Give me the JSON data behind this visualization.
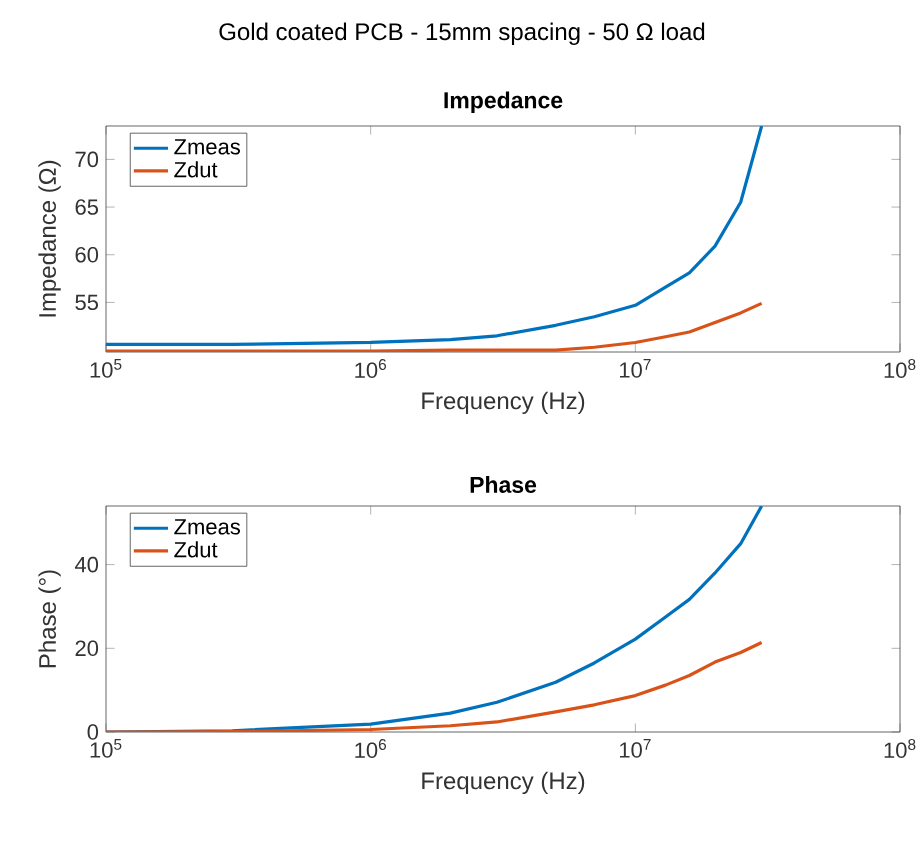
{
  "chart_data": [
    {
      "type": "line",
      "title": "Gold coated PCB - 15mm spacing - 50 Ω load",
      "subtitle": "Impedance",
      "xlabel": "Frequency (Hz)",
      "ylabel": "Impedance (Ω)",
      "log": "x",
      "grid": false,
      "legend": "top left",
      "xlim": [
        100000,
        100000000
      ],
      "xticks": [
        {
          "value": 100000,
          "label": "10$^{5}$"
        },
        {
          "value": 1000000,
          "label": "10$^{6}$"
        },
        {
          "value": 10000000,
          "label": "10$^{7}$"
        },
        {
          "value": 100000000,
          "label": "10$^{8}$"
        }
      ],
      "ylim": [
        49.8,
        73.5
      ],
      "yticks": [
        55,
        60,
        65,
        70
      ],
      "x": [
        100000,
        300000,
        1000000,
        2000000,
        3000000,
        5000000,
        7000000,
        10000000,
        13000000,
        16000000,
        20000000,
        25000000,
        30000000
      ],
      "series": [
        {
          "name": "Zmeas",
          "color": "#0072bd",
          "values": [
            50.6,
            50.6,
            50.8,
            51.1,
            51.5,
            52.6,
            53.5,
            54.7,
            56.6,
            58.1,
            60.9,
            65.5,
            73.5
          ]
        },
        {
          "name": "Zdut",
          "color": "#d95319",
          "values": [
            49.9,
            49.9,
            49.9,
            50.0,
            50.0,
            50.0,
            50.3,
            50.8,
            51.4,
            51.9,
            52.9,
            53.9,
            54.9
          ]
        }
      ]
    },
    {
      "type": "line",
      "title": "Phase",
      "xlabel": "Frequency (Hz)",
      "ylabel": "Phase (°)",
      "log": "x",
      "grid": false,
      "legend": "top left",
      "xlim": [
        100000,
        100000000
      ],
      "xticks": [
        {
          "value": 100000,
          "label": "10$^{5}$"
        },
        {
          "value": 1000000,
          "label": "10$^{6}$"
        },
        {
          "value": 10000000,
          "label": "10$^{7}$"
        },
        {
          "value": 100000000,
          "label": "10$^{8}$"
        }
      ],
      "ylim": [
        0,
        54
      ],
      "yticks": [
        0,
        20,
        40
      ],
      "x": [
        100000,
        300000,
        1000000,
        2000000,
        3000000,
        5000000,
        7000000,
        10000000,
        13000000,
        16000000,
        20000000,
        25000000,
        30000000
      ],
      "series": [
        {
          "name": "Zmeas",
          "color": "#0072bd",
          "values": [
            0,
            0.3,
            1.9,
            4.5,
            7.1,
            11.9,
            16.5,
            22.2,
            27.5,
            31.7,
            38,
            45,
            54
          ]
        },
        {
          "name": "Zdut",
          "color": "#d95319",
          "values": [
            0,
            0.1,
            0.6,
            1.5,
            2.4,
            4.8,
            6.5,
            8.7,
            11.2,
            13.5,
            16.7,
            19.0,
            21.4
          ]
        }
      ]
    }
  ]
}
